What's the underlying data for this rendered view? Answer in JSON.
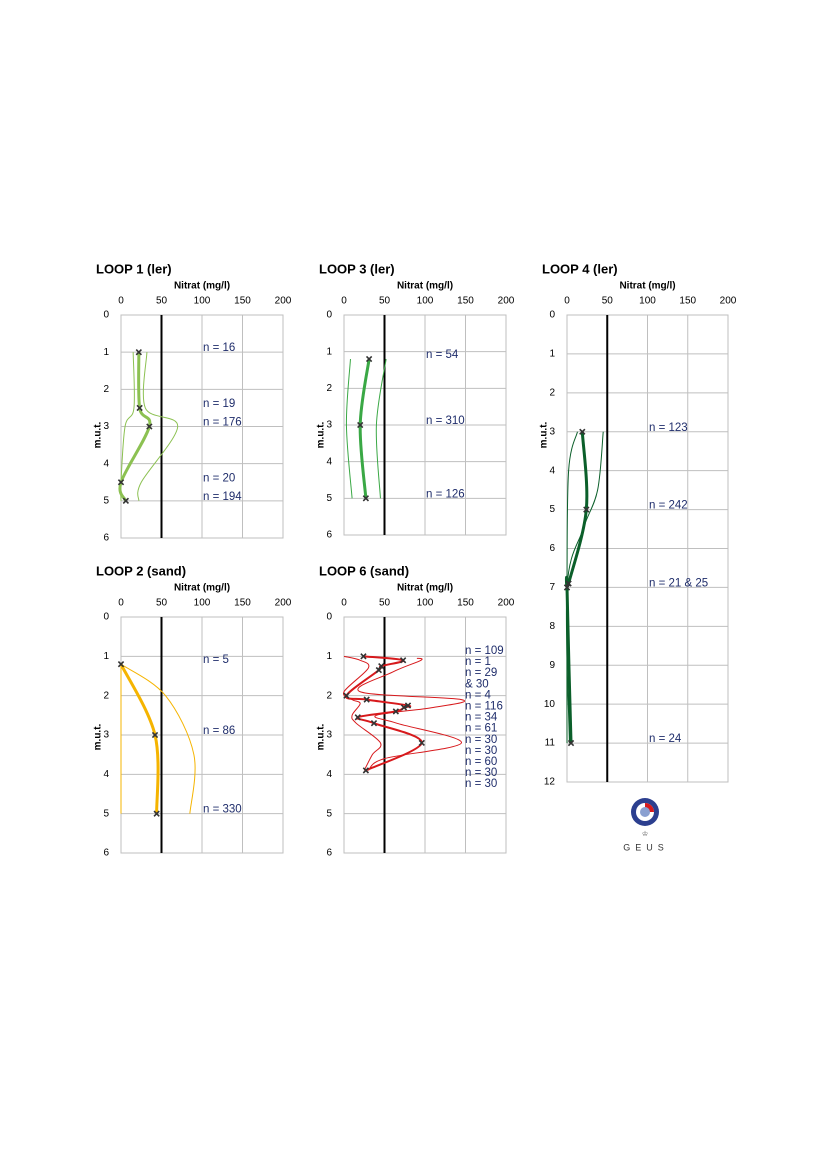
{
  "chart_data": [
    {
      "type": "line",
      "title": "LOOP 1 (ler)",
      "xlabel": "Nitrat (mg/l)",
      "ylabel": "m.u.t.",
      "xlim": [
        0,
        200
      ],
      "xticks": [
        0,
        50,
        100,
        150,
        200
      ],
      "ylim": [
        0,
        6
      ],
      "yticks": [
        0,
        1,
        2,
        3,
        4,
        5,
        6
      ],
      "y_inverted": true,
      "grid": true,
      "reference_line": 50,
      "series": [
        {
          "color": "#8cc152",
          "line_width": 1,
          "x": [
            15,
            16,
            5,
            0,
            0
          ],
          "y": [
            1,
            2.5,
            3,
            4.5,
            5
          ]
        },
        {
          "color": "#8cc152",
          "line_width": 1,
          "x": [
            32,
            30,
            70,
            25,
            22
          ],
          "y": [
            1,
            2.5,
            3,
            4.5,
            5
          ]
        },
        {
          "color": "#8cc152",
          "line_width": 3,
          "markers": true,
          "x": [
            22,
            23,
            35,
            0,
            6
          ],
          "y": [
            1,
            2.5,
            3,
            4.5,
            5
          ]
        }
      ],
      "annotations": [
        {
          "text": "n = 16",
          "y": 1
        },
        {
          "text": "n = 19",
          "y": 2.5
        },
        {
          "text": "n = 176",
          "y": 3
        },
        {
          "text": "n = 20",
          "y": 4.5
        },
        {
          "text": "n = 194",
          "y": 5
        }
      ]
    },
    {
      "type": "line",
      "title": "LOOP 3 (ler)",
      "xlabel": "Nitrat (mg/l)",
      "ylabel": "m.u.t.",
      "xlim": [
        0,
        200
      ],
      "xticks": [
        0,
        50,
        100,
        150,
        200
      ],
      "ylim": [
        0,
        6
      ],
      "yticks": [
        0,
        1,
        2,
        3,
        4,
        5,
        6
      ],
      "y_inverted": true,
      "grid": true,
      "reference_line": 50,
      "series": [
        {
          "color": "#3aa845",
          "line_width": 1,
          "x": [
            8,
            3,
            10
          ],
          "y": [
            1.2,
            3,
            5
          ]
        },
        {
          "color": "#3aa845",
          "line_width": 1,
          "x": [
            52,
            40,
            45
          ],
          "y": [
            1.2,
            3,
            5
          ]
        },
        {
          "color": "#3aa845",
          "line_width": 3,
          "markers": true,
          "x": [
            31,
            20,
            27
          ],
          "y": [
            1.2,
            3,
            5
          ]
        }
      ],
      "annotations": [
        {
          "text": "n = 54",
          "y": 1.2
        },
        {
          "text": "n = 310",
          "y": 3
        },
        {
          "text": "n = 126",
          "y": 5
        }
      ]
    },
    {
      "type": "line",
      "title": "LOOP 4 (ler)",
      "xlabel": "Nitrat (mg/l)",
      "ylabel": "m.u.t.",
      "xlim": [
        0,
        200
      ],
      "xticks": [
        0,
        50,
        100,
        150,
        200
      ],
      "ylim": [
        0,
        12
      ],
      "yticks": [
        0,
        1,
        2,
        3,
        4,
        5,
        6,
        7,
        8,
        9,
        10,
        11,
        12
      ],
      "y_inverted": true,
      "grid": true,
      "reference_line": 50,
      "series": [
        {
          "color": "#0b5f2a",
          "line_width": 1,
          "x": [
            13,
            2,
            0,
            0
          ],
          "y": [
            3,
            4,
            7,
            11
          ]
        },
        {
          "color": "#0b5f2a",
          "line_width": 1,
          "x": [
            45,
            38,
            20,
            0,
            3
          ],
          "y": [
            3,
            4.5,
            5.5,
            7,
            11
          ]
        },
        {
          "color": "#0b5f2a",
          "line_width": 3,
          "markers": true,
          "x": [
            19,
            24,
            2,
            0,
            5
          ],
          "y": [
            3,
            5,
            6.9,
            7,
            11
          ]
        }
      ],
      "annotations": [
        {
          "text": "n = 123",
          "y": 3
        },
        {
          "text": "n = 242",
          "y": 5
        },
        {
          "text": "n = 21 & 25",
          "y": 7
        },
        {
          "text": "n = 24",
          "y": 11
        }
      ]
    },
    {
      "type": "line",
      "title": "LOOP 2 (sand)",
      "xlabel": "Nitrat (mg/l)",
      "ylabel": "m.u.t.",
      "xlim": [
        0,
        200
      ],
      "xticks": [
        0,
        50,
        100,
        150,
        200
      ],
      "ylim": [
        0,
        6
      ],
      "yticks": [
        0,
        1,
        2,
        3,
        4,
        5,
        6
      ],
      "y_inverted": true,
      "grid": true,
      "reference_line": 50,
      "series": [
        {
          "color": "#f5b400",
          "line_width": 1,
          "x": [
            0,
            0,
            0
          ],
          "y": [
            1.2,
            3,
            5
          ]
        },
        {
          "color": "#f5b400",
          "line_width": 1,
          "x": [
            0,
            55,
            90,
            85
          ],
          "y": [
            1.2,
            2,
            3.5,
            5
          ]
        },
        {
          "color": "#f5b400",
          "line_width": 3,
          "markers": true,
          "x": [
            0,
            42,
            44
          ],
          "y": [
            1.2,
            3,
            5
          ]
        }
      ],
      "annotations": [
        {
          "text": "n = 5",
          "y": 1.2
        },
        {
          "text": "n = 86",
          "y": 3
        },
        {
          "text": "n = 330",
          "y": 5
        }
      ]
    },
    {
      "type": "line",
      "title": "LOOP 6 (sand)",
      "xlabel": "Nitrat (mg/l)",
      "ylabel": "m.u.t.",
      "xlim": [
        0,
        200
      ],
      "xticks": [
        0,
        50,
        100,
        150,
        200
      ],
      "ylim": [
        0,
        6
      ],
      "yticks": [
        0,
        1,
        2,
        3,
        4,
        5,
        6
      ],
      "y_inverted": true,
      "grid": true,
      "reference_line": 50,
      "series": [
        {
          "color": "#d7191c",
          "line_width": 1,
          "x": [
            0,
            20,
            30,
            0,
            10,
            20,
            10,
            15,
            45,
            35,
            25
          ],
          "y": [
            1.0,
            1.1,
            1.3,
            1.9,
            2.1,
            2.2,
            2.5,
            2.7,
            3.2,
            3.5,
            3.9
          ]
        },
        {
          "color": "#d7191c",
          "line_width": 1,
          "x": [
            90,
            95,
            60,
            20,
            145,
            110,
            40,
            65,
            145,
            50,
            30
          ],
          "y": [
            1.05,
            1.1,
            1.4,
            1.9,
            2.1,
            2.3,
            2.5,
            2.7,
            3.2,
            3.6,
            3.9
          ]
        },
        {
          "color": "#d7191c",
          "line_width": 2,
          "markers": true,
          "x": [
            24,
            73,
            46,
            43,
            3,
            28,
            79,
            74,
            64,
            17,
            37,
            96,
            27
          ],
          "y": [
            1.0,
            1.1,
            1.25,
            1.35,
            2.0,
            2.1,
            2.25,
            2.3,
            2.4,
            2.55,
            2.7,
            3.2,
            3.9
          ]
        }
      ],
      "notes": [
        "n = 109",
        "n = 1",
        "n = 29",
        "& 30",
        "n = 4",
        "n = 116",
        "n = 34",
        "n = 61",
        "n = 30",
        "n = 30",
        "n = 60",
        "n = 30",
        "n = 30"
      ]
    }
  ],
  "logo": "GEUS"
}
